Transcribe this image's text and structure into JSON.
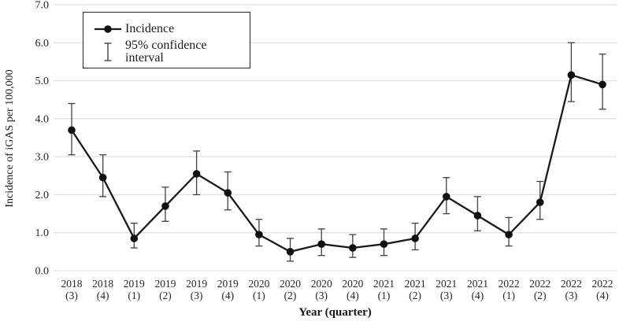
{
  "figure": {
    "y_axis_title": "Incidence of iGAS per 100,000",
    "x_axis_title": "Year (quarter)",
    "legend": {
      "incidence_label": "Incidence",
      "ci_label": "95% confidence interval"
    }
  },
  "chart_data": {
    "type": "line",
    "title": "",
    "xlabel": "Year (quarter)",
    "ylabel": "Incidence of iGAS per 100,000",
    "ylim": [
      0,
      7
    ],
    "y_ticks": [
      "0.0",
      "1.0",
      "2.0",
      "3.0",
      "4.0",
      "5.0",
      "6.0",
      "7.0"
    ],
    "grid": true,
    "legend_position": "top-left-inside",
    "categories": [
      "2018 (3)",
      "2018 (4)",
      "2019 (1)",
      "2019 (2)",
      "2019 (3)",
      "2019 (4)",
      "2020 (1)",
      "2020 (2)",
      "2020 (3)",
      "2020 (4)",
      "2021 (1)",
      "2021 (2)",
      "2021 (3)",
      "2021 (4)",
      "2022 (1)",
      "2022 (2)",
      "2022 (3)",
      "2022 (4)"
    ],
    "series": [
      {
        "name": "Incidence",
        "values": [
          3.7,
          2.45,
          0.85,
          1.7,
          2.55,
          2.05,
          0.95,
          0.5,
          0.7,
          0.6,
          0.7,
          0.85,
          1.95,
          1.45,
          0.95,
          1.8,
          5.15,
          4.9
        ],
        "ci_low": [
          3.05,
          1.95,
          0.6,
          1.3,
          2.0,
          1.6,
          0.65,
          0.25,
          0.4,
          0.35,
          0.4,
          0.55,
          1.5,
          1.05,
          0.65,
          1.35,
          4.45,
          4.25
        ],
        "ci_high": [
          4.4,
          3.05,
          1.25,
          2.2,
          3.15,
          2.6,
          1.35,
          0.85,
          1.1,
          0.95,
          1.1,
          1.25,
          2.45,
          1.95,
          1.4,
          2.35,
          6.0,
          5.7
        ]
      }
    ],
    "colors": {
      "line": "#1a1a1a",
      "marker": "#111111",
      "error_bar": "#404040",
      "gridline": "#d9d9d9",
      "text": "#262626"
    }
  }
}
